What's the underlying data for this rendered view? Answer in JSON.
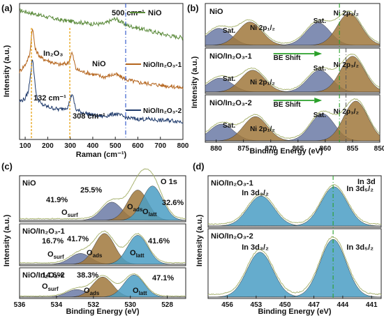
{
  "figure": {
    "panels": {
      "a": {
        "label": "(a)"
      },
      "b": {
        "label": "(b)"
      },
      "c": {
        "label": "(c)"
      },
      "d": {
        "label": "(d)"
      }
    }
  },
  "chart_data": [
    {
      "panel": "a",
      "type": "line",
      "title": "",
      "xlabel": "Raman (cm⁻¹)",
      "ylabel": "Intensity (a.u.)",
      "xlim": [
        75,
        800
      ],
      "x_ticks": [
        "100",
        "200",
        "300",
        "400",
        "500",
        "600",
        "700",
        "800"
      ],
      "legend": [
        "NiO",
        "NiO/In₂O₃-1",
        "NiO/In₂O₃-2"
      ],
      "legend_colors": [
        "#5a8a3a",
        "#b5651d",
        "#1f3a6b"
      ],
      "annotations": {
        "nio_peak": "500 cm⁻¹",
        "in2o3": "In₂O₃",
        "nio": "NiO",
        "peak1": "132 cm⁻¹",
        "peak2": "308 cm⁻¹"
      },
      "series": [
        {
          "name": "NiO",
          "color": "#5a8a3a",
          "x": [
            75,
            100,
            150,
            200,
            250,
            300,
            350,
            400,
            450,
            500,
            550,
            600,
            650,
            700,
            750,
            800
          ],
          "y": [
            0.95,
            0.94,
            0.92,
            0.9,
            0.88,
            0.87,
            0.86,
            0.85,
            0.85,
            0.89,
            0.84,
            0.82,
            0.8,
            0.78,
            0.76,
            0.75
          ]
        },
        {
          "name": "NiO/In₂O₃-1",
          "color": "#b5651d",
          "x": [
            75,
            100,
            120,
            132,
            145,
            170,
            200,
            250,
            290,
            308,
            325,
            350,
            400,
            450,
            500,
            550,
            600,
            650,
            700,
            750,
            800
          ],
          "y": [
            0.5,
            0.55,
            0.62,
            0.83,
            0.66,
            0.6,
            0.58,
            0.55,
            0.56,
            0.64,
            0.52,
            0.5,
            0.48,
            0.46,
            0.48,
            0.44,
            0.42,
            0.41,
            0.4,
            0.39,
            0.38
          ]
        },
        {
          "name": "NiO/In₂O₃-2",
          "color": "#1f3a6b",
          "x": [
            75,
            100,
            115,
            132,
            150,
            170,
            200,
            250,
            290,
            308,
            325,
            350,
            400,
            450,
            500,
            550,
            600,
            650,
            700,
            750,
            800
          ],
          "y": [
            0.28,
            0.3,
            0.36,
            0.6,
            0.32,
            0.26,
            0.24,
            0.22,
            0.24,
            0.34,
            0.22,
            0.2,
            0.18,
            0.17,
            0.19,
            0.16,
            0.15,
            0.15,
            0.14,
            0.14,
            0.13
          ]
        }
      ]
    },
    {
      "panel": "b",
      "type": "area",
      "xlabel": "Binding Energy (eV)",
      "ylabel": "Intensity (a.u.)",
      "xlim": [
        882,
        850
      ],
      "x_ticks": [
        "880",
        "875",
        "870",
        "865",
        "860",
        "855",
        "850"
      ],
      "subpanels": [
        {
          "name": "NiO",
          "arrow": "",
          "labels": {
            "sat1": "Sat.",
            "p12": "Ni 2p₁/₂",
            "sat2": "Sat.",
            "p32": "Ni 2p₃/₂"
          },
          "peaks": [
            {
              "center": 879.5,
              "height": 0.45,
              "color": "#6b7aa6"
            },
            {
              "center": 873.8,
              "height": 0.62,
              "color": "#a0783c"
            },
            {
              "center": 861.3,
              "height": 0.6,
              "color": "#6b7aa6"
            },
            {
              "center": 855.6,
              "height": 0.85,
              "color": "#a0783c"
            }
          ]
        },
        {
          "name": "NiO/In₂O₃-1",
          "arrow": "BE Shift",
          "labels": {
            "sat1": "Sat.",
            "p12": "Ni 2p₁/₂",
            "sat2": "Sat.",
            "p32": "Ni 2p₃/₂"
          },
          "peaks": [
            {
              "center": 879.3,
              "height": 0.35,
              "color": "#6b7aa6"
            },
            {
              "center": 873.3,
              "height": 0.55,
              "color": "#a0783c"
            },
            {
              "center": 861.0,
              "height": 0.55,
              "color": "#6b7aa6"
            },
            {
              "center": 855.0,
              "height": 0.9,
              "color": "#a0783c"
            }
          ]
        },
        {
          "name": "NiO/In₂O₃-2",
          "arrow": "BE Shift",
          "labels": {
            "sat1": "Sat.",
            "p12": "Ni 2p₁/₂",
            "sat2": "Sat.",
            "p32": "Ni 2p₃/₂"
          },
          "peaks": [
            {
              "center": 879.0,
              "height": 0.4,
              "color": "#6b7aa6"
            },
            {
              "center": 872.8,
              "height": 0.58,
              "color": "#a0783c"
            },
            {
              "center": 860.5,
              "height": 0.65,
              "color": "#6b7aa6"
            },
            {
              "center": 854.4,
              "height": 0.95,
              "color": "#a0783c"
            }
          ]
        }
      ]
    },
    {
      "panel": "c",
      "type": "area",
      "xlabel": "Binding Energy (eV)",
      "ylabel": "Intensity (a.u.)",
      "xlim": [
        536,
        527
      ],
      "x_ticks": [
        "536",
        "534",
        "532",
        "530",
        "528"
      ],
      "corner_label": "O 1s",
      "subpanels": [
        {
          "name": "NiO",
          "labels": {
            "surf": "O",
            "surf_sub": "surf",
            "ads": "O",
            "ads_sub": "ads",
            "latt": "O",
            "latt_sub": "latt"
          },
          "percents": {
            "surf": "41.9%",
            "ads": "25.5%",
            "latt": "32.6%"
          },
          "peaks": [
            {
              "center": 531.0,
              "height": 0.45,
              "color": "#6b7aa6"
            },
            {
              "center": 529.6,
              "height": 0.75,
              "color": "#a0783c"
            },
            {
              "center": 528.8,
              "height": 0.85,
              "color": "#4a9ec4"
            }
          ]
        },
        {
          "name": "NiO/In₂O₃-1",
          "labels": {
            "surf": "O",
            "surf_sub": "surf",
            "ads": "O",
            "ads_sub": "ads",
            "latt": "O",
            "latt_sub": "latt"
          },
          "percents": {
            "surf": "16.7%",
            "ads": "41.7%",
            "latt": "41.6%"
          },
          "peaks": [
            {
              "center": 532.7,
              "height": 0.3,
              "color": "#6b7aa6"
            },
            {
              "center": 531.4,
              "height": 0.85,
              "color": "#a0783c"
            },
            {
              "center": 529.6,
              "height": 0.8,
              "color": "#4a9ec4"
            }
          ]
        },
        {
          "name": "NiO/In₂O₃-2",
          "labels": {
            "surf": "O",
            "surf_sub": "surf",
            "ads": "O",
            "ads_sub": "ads",
            "latt": "O",
            "latt_sub": "latt"
          },
          "percents": {
            "surf": "14.6%",
            "ads": "38.3%",
            "latt": "47.1%"
          },
          "peaks": [
            {
              "center": 532.9,
              "height": 0.3,
              "color": "#6b7aa6"
            },
            {
              "center": 531.5,
              "height": 0.8,
              "color": "#a0783c"
            },
            {
              "center": 529.8,
              "height": 0.88,
              "color": "#4a9ec4"
            }
          ]
        }
      ]
    },
    {
      "panel": "d",
      "type": "area",
      "xlabel": "Binding Energy (eV)",
      "ylabel": "Intensity (a.u.)",
      "xlim": [
        458,
        440
      ],
      "x_ticks": [
        "456",
        "453",
        "450",
        "447",
        "444",
        "441"
      ],
      "corner_label": "In 3d",
      "subpanels": [
        {
          "name": "NiO/In₂O₃-1",
          "labels": {
            "d32": "In 3d₃/₂",
            "d52": "In 3d₅/₂"
          },
          "peaks": [
            {
              "center": 452.5,
              "height": 0.65,
              "color": "#4a9ec4"
            },
            {
              "center": 444.9,
              "height": 0.85,
              "color": "#4a9ec4"
            }
          ]
        },
        {
          "name": "NiO/In₂O₃-2",
          "labels": {
            "d32": "In 3d₃/₂",
            "d52": "In 3d₅/₂"
          },
          "peaks": [
            {
              "center": 452.6,
              "height": 0.7,
              "color": "#4a9ec4"
            },
            {
              "center": 445.0,
              "height": 0.9,
              "color": "#4a9ec4"
            }
          ]
        }
      ]
    }
  ]
}
